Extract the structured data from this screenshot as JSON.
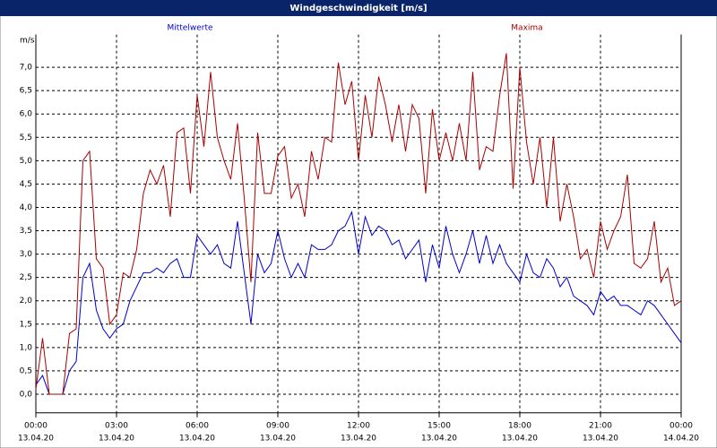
{
  "chart_data": {
    "type": "line",
    "title": "Windgeschwindigkeit [m/s]",
    "y_label": "m/s",
    "x": [
      0,
      0.25,
      0.5,
      0.75,
      1,
      1.25,
      1.5,
      1.75,
      2,
      2.25,
      2.5,
      2.75,
      3,
      3.25,
      3.5,
      3.75,
      4,
      4.25,
      4.5,
      4.75,
      5,
      5.25,
      5.5,
      5.75,
      6,
      6.25,
      6.5,
      6.75,
      7,
      7.25,
      7.5,
      7.75,
      8,
      8.25,
      8.5,
      8.75,
      9,
      9.25,
      9.5,
      9.75,
      10,
      10.25,
      10.5,
      10.75,
      11,
      11.25,
      11.5,
      11.75,
      12,
      12.25,
      12.5,
      12.75,
      13,
      13.25,
      13.5,
      13.75,
      14,
      14.25,
      14.5,
      14.75,
      15,
      15.25,
      15.5,
      15.75,
      16,
      16.25,
      16.5,
      16.75,
      17,
      17.25,
      17.5,
      17.75,
      18,
      18.25,
      18.5,
      18.75,
      19,
      19.25,
      19.5,
      19.75,
      20,
      20.25,
      20.5,
      20.75,
      21,
      21.25,
      21.5,
      21.75,
      22,
      22.25,
      22.5,
      22.75,
      23,
      23.25,
      23.5,
      23.75,
      24
    ],
    "series": [
      {
        "name": "Mittelwerte",
        "color": "#0000cc",
        "values": [
          0.2,
          0.4,
          0.0,
          0.0,
          0.0,
          0.5,
          0.7,
          2.5,
          2.8,
          1.8,
          1.4,
          1.2,
          1.4,
          1.5,
          2.0,
          2.3,
          2.6,
          2.6,
          2.7,
          2.6,
          2.8,
          2.9,
          2.5,
          2.5,
          3.4,
          3.2,
          3.0,
          3.2,
          2.8,
          2.7,
          3.7,
          2.6,
          1.5,
          3.0,
          2.6,
          2.8,
          3.5,
          2.9,
          2.5,
          2.8,
          2.5,
          3.2,
          3.1,
          3.1,
          3.2,
          3.5,
          3.6,
          3.9,
          3.0,
          3.8,
          3.4,
          3.6,
          3.5,
          3.2,
          3.3,
          2.9,
          3.1,
          3.3,
          2.4,
          3.2,
          2.7,
          3.6,
          3.0,
          2.6,
          3.0,
          3.5,
          2.8,
          3.4,
          2.8,
          3.2,
          2.8,
          2.6,
          2.4,
          3.0,
          2.6,
          2.5,
          2.9,
          2.7,
          2.3,
          2.5,
          2.1,
          2.0,
          1.9,
          1.7,
          2.2,
          2.0,
          2.1,
          1.9,
          1.9,
          1.8,
          1.7,
          2.0,
          1.9,
          1.7,
          1.5,
          1.3,
          1.1
        ]
      },
      {
        "name": "Maxima",
        "color": "#aa0000",
        "values": [
          0.1,
          1.2,
          0.0,
          0.0,
          0.0,
          1.3,
          1.4,
          5.0,
          5.2,
          2.9,
          2.7,
          1.5,
          1.7,
          2.6,
          2.5,
          3.1,
          4.3,
          4.8,
          4.5,
          4.9,
          3.8,
          5.6,
          5.7,
          4.3,
          6.4,
          5.3,
          6.9,
          5.5,
          5.0,
          4.6,
          5.8,
          4.2,
          2.4,
          5.6,
          4.3,
          4.3,
          5.1,
          5.3,
          4.2,
          4.5,
          3.8,
          5.2,
          4.6,
          5.5,
          5.4,
          7.1,
          6.2,
          6.7,
          5.0,
          6.4,
          5.5,
          6.8,
          6.2,
          5.4,
          6.2,
          5.2,
          6.2,
          5.9,
          4.3,
          6.1,
          5.0,
          5.6,
          5.0,
          5.8,
          5.0,
          6.9,
          4.8,
          5.3,
          5.2,
          6.4,
          7.3,
          4.4,
          7.0,
          5.4,
          4.5,
          5.5,
          4.0,
          5.5,
          3.7,
          4.5,
          3.8,
          2.9,
          3.1,
          2.5,
          3.7,
          3.1,
          3.5,
          3.8,
          4.7,
          2.8,
          2.7,
          2.9,
          3.7,
          2.4,
          2.7,
          1.9,
          2.0
        ]
      }
    ],
    "xlim": [
      0,
      24
    ],
    "xticks": [
      {
        "value": 0,
        "label": [
          "00:00",
          "13.04.20"
        ]
      },
      {
        "value": 3,
        "label": [
          "03:00",
          "13.04.20"
        ]
      },
      {
        "value": 6,
        "label": [
          "06:00",
          "13.04.20"
        ]
      },
      {
        "value": 9,
        "label": [
          "09:00",
          "13.04.20"
        ]
      },
      {
        "value": 12,
        "label": [
          "12:00",
          "13.04.20"
        ]
      },
      {
        "value": 15,
        "label": [
          "15:00",
          "13.04.20"
        ]
      },
      {
        "value": 18,
        "label": [
          "18:00",
          "13.04.20"
        ]
      },
      {
        "value": 21,
        "label": [
          "21:00",
          "13.04.20"
        ]
      },
      {
        "value": 24,
        "label": [
          "00:00",
          "14.04.20"
        ]
      }
    ],
    "ylim": [
      -0.4,
      7.7
    ],
    "yticks": [
      {
        "value": 0,
        "label": "0,0"
      },
      {
        "value": 0.5,
        "label": "0,5"
      },
      {
        "value": 1,
        "label": "1,0"
      },
      {
        "value": 1.5,
        "label": "1,5"
      },
      {
        "value": 2,
        "label": "2,0"
      },
      {
        "value": 2.5,
        "label": "2,5"
      },
      {
        "value": 3,
        "label": "3,0"
      },
      {
        "value": 3.5,
        "label": "3,5"
      },
      {
        "value": 4,
        "label": "4,0"
      },
      {
        "value": 4.5,
        "label": "4,5"
      },
      {
        "value": 5,
        "label": "5,0"
      },
      {
        "value": 5.5,
        "label": "5,5"
      },
      {
        "value": 6,
        "label": "6,0"
      },
      {
        "value": 6.5,
        "label": "6,5"
      },
      {
        "value": 7,
        "label": "7,0"
      }
    ],
    "grid": true
  }
}
